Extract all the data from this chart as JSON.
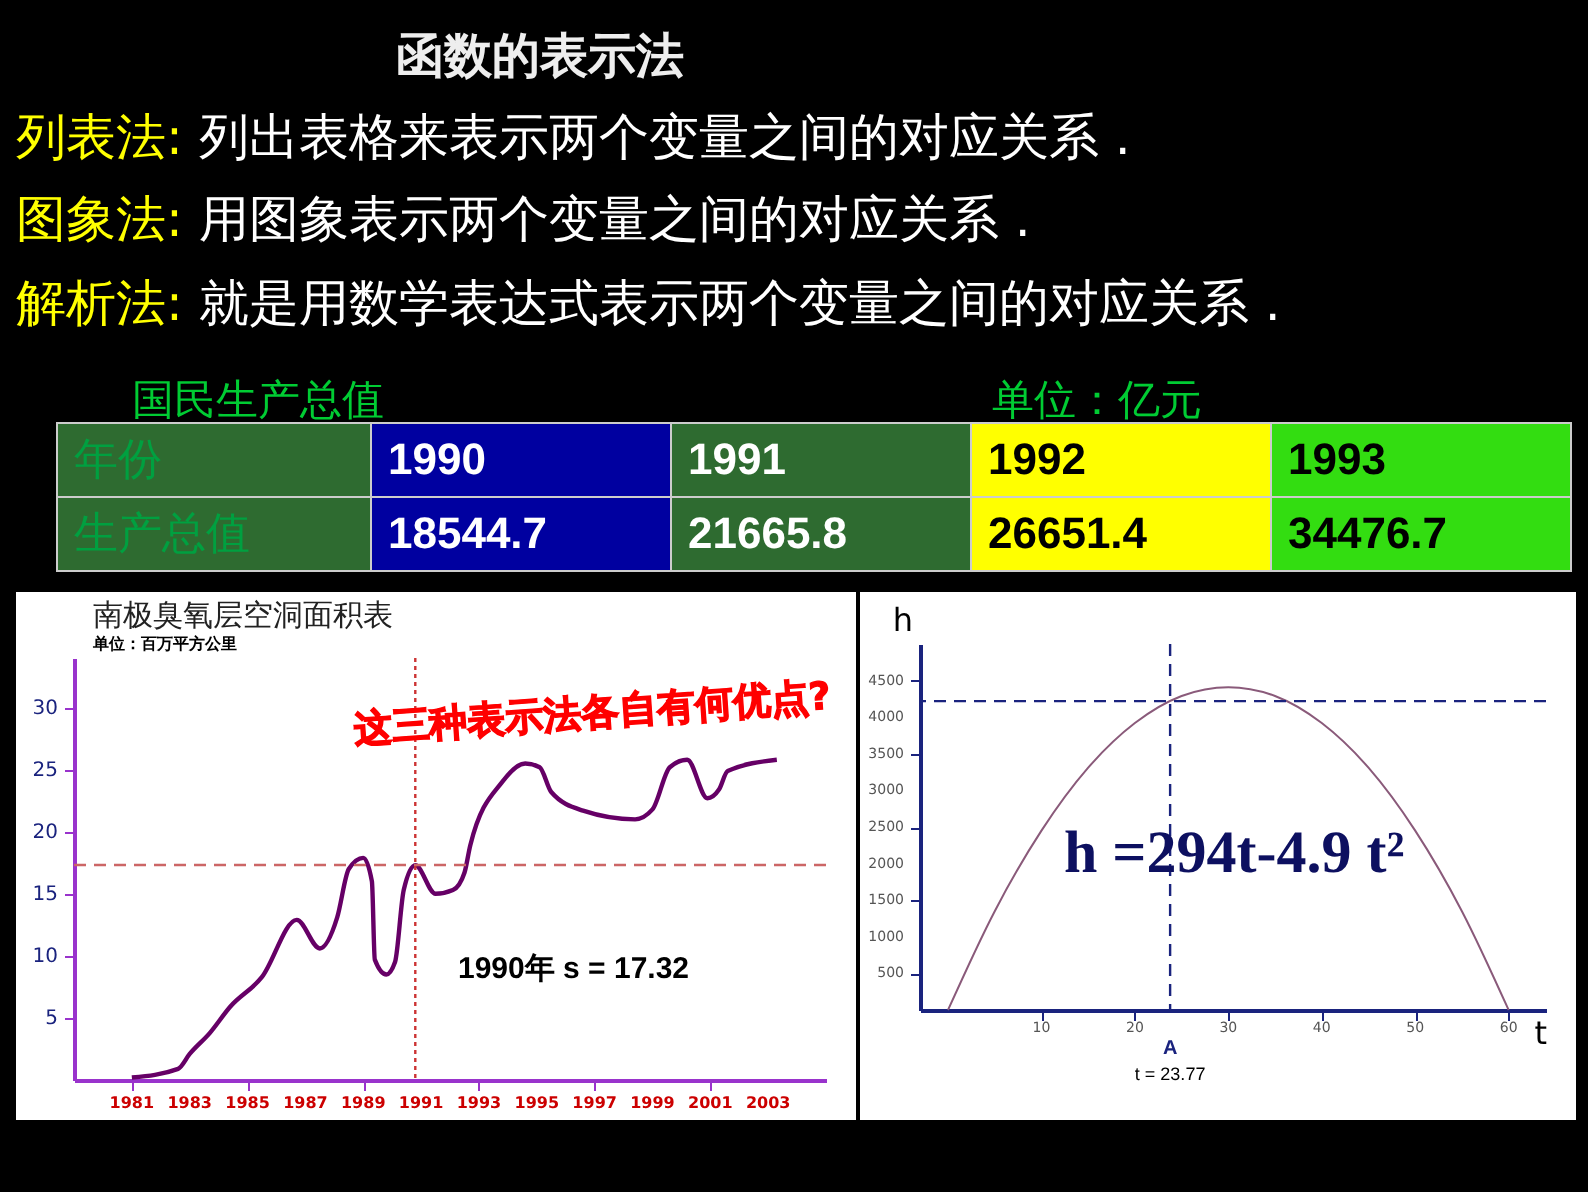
{
  "chart_data": [
    {
      "type": "other",
      "title": "函数的表示法",
      "annotations": [
        "列表法: 列出表格来表示两个变量之间的对应关系 .",
        "图象法: 用图象表示两个变量之间的对应关系 .",
        "解析法: 就是用数学表达式表示两个变量之间的对应关系 .",
        "这三种表示法各自有何优点?"
      ]
    },
    {
      "type": "heatmap",
      "title": "国民生产总值",
      "subtitle": "单位：亿元",
      "xlabel": "年份",
      "categories": [
        "1990",
        "1991",
        "1992",
        "1993"
      ],
      "y_categories": [
        "生产总值"
      ],
      "cells": [
        [
          18544.7,
          21665.8,
          26651.4,
          34476.7
        ]
      ],
      "colors": [
        "#0000a0",
        "#2e6b30",
        "#ffff00",
        "#33dd11"
      ],
      "data_labels": true
    },
    {
      "type": "line",
      "title": "南极臭氧层空洞面积表",
      "subtitle": "单位：百万平方公里",
      "x": [
        1981,
        1982.6,
        1983,
        1983.7,
        1984.4,
        1985.5,
        1986.7,
        1987.5,
        1988.1,
        1988.5,
        1989,
        1989.3,
        1989.4,
        1989.8,
        1990.1,
        1990.4,
        1990.8,
        1991.5,
        1992.1,
        1992.5,
        1992.7,
        1993.8,
        1994.6,
        1995.1,
        1995.5,
        1996.6,
        1998.4,
        1999,
        1999.6,
        2000.2,
        2000.9,
        2001.3,
        2001.6,
        2003.3
      ],
      "series": [
        {
          "color": "#660066",
          "values": [
            0.2,
            0.9,
            2.1,
            3.8,
            5.9,
            8.3,
            12.9,
            10.6,
            13.1,
            17,
            17.9,
            16,
            9.7,
            8.5,
            9.5,
            15.3,
            17.3,
            15,
            15.3,
            16.7,
            18.9,
            24,
            25.5,
            25.2,
            23.2,
            21.7,
            21,
            21.8,
            25.2,
            25.8,
            22.7,
            23.4,
            24.9,
            25.8
          ]
        }
      ],
      "xlim": [
        1979,
        2005
      ],
      "xticks": [
        1981,
        1983,
        1985,
        1987,
        1989,
        1991,
        1993,
        1995,
        1997,
        1999,
        2001,
        2003
      ],
      "ylim": [
        0,
        34
      ],
      "yticks": [
        5,
        10,
        15,
        20,
        25,
        30
      ],
      "ref_lines": [
        {
          "axis": "y",
          "value": 17.32,
          "color": "#cc6666",
          "line_style": "dashed"
        },
        {
          "axis": "x",
          "value": 1990.8,
          "color": "#cc3333",
          "line_style": "dotted"
        }
      ],
      "annotations": [
        "1990年  s = 17.32"
      ]
    },
    {
      "type": "line",
      "xlabel": "t",
      "ylabel": "h",
      "x": [
        0,
        5,
        10,
        15,
        20,
        25,
        30,
        35,
        40,
        45,
        50,
        55,
        60
      ],
      "series": [
        {
          "color": "#8a5a7a",
          "values": [
            0,
            1350,
            2450,
            3310,
            3920,
            4290,
            4410,
            4290,
            3920,
            3310,
            2450,
            1350,
            0
          ]
        }
      ],
      "xlim": [
        -3,
        64
      ],
      "xticks": [
        10,
        20,
        30,
        40,
        50,
        60
      ],
      "ylim": [
        0,
        5000
      ],
      "yticks": [
        500,
        1000,
        1500,
        2000,
        2500,
        3000,
        3500,
        4000,
        4500
      ],
      "ref_lines": [
        {
          "axis": "x",
          "value": 23.77,
          "color": "#1a237e",
          "line_style": "dashed"
        },
        {
          "axis": "y",
          "value": 4220,
          "color": "#1a237e",
          "line_style": "dashed"
        }
      ],
      "annotations": [
        "h =294t-4.9 t²",
        "A",
        "t = 23.77"
      ]
    }
  ]
}
